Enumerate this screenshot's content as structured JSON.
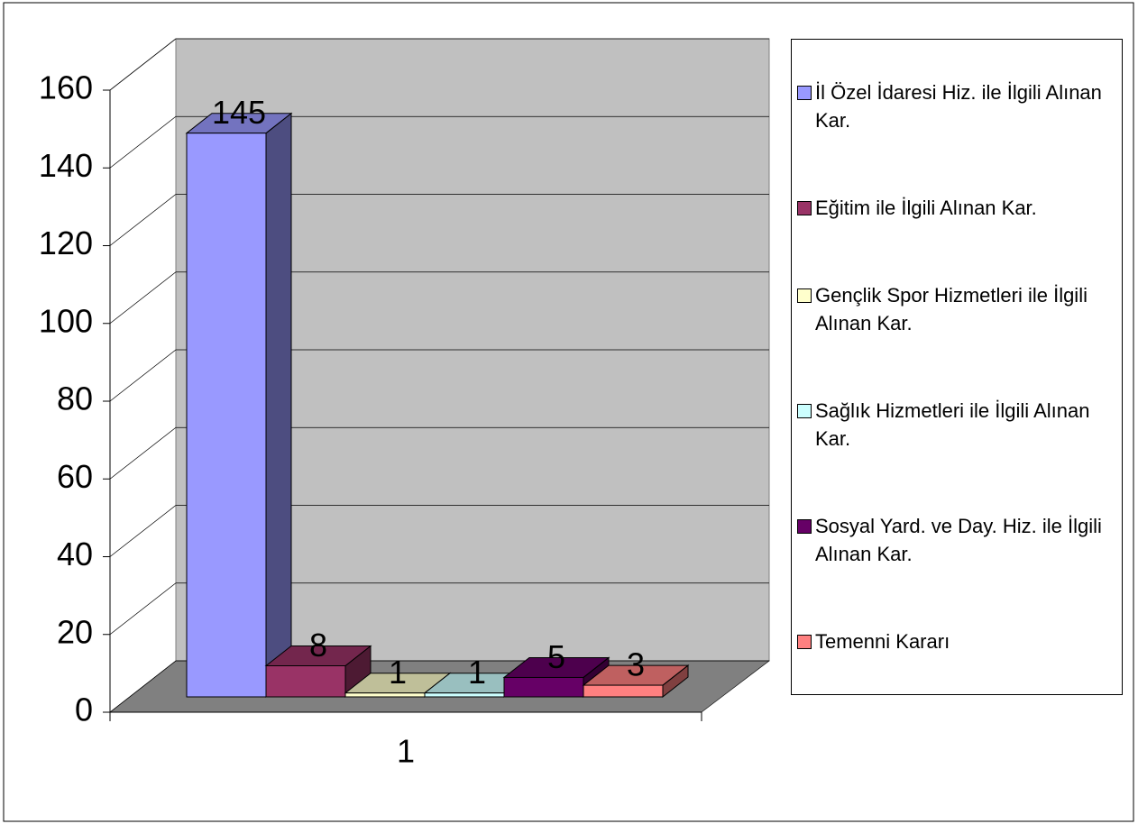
{
  "chart_data": {
    "type": "bar3d",
    "categories": [
      "1"
    ],
    "series": [
      {
        "name": "İl Özel İdaresi Hiz. ile İlgili Alınan Kar.",
        "color": "#9999ff",
        "values": [
          145
        ]
      },
      {
        "name": "Eğitim ile İlgili Alınan Kar.",
        "color": "#993366",
        "values": [
          8
        ]
      },
      {
        "name": "Gençlik Spor Hizmetleri ile İlgili Alınan Kar.",
        "color": "#ffffcc",
        "values": [
          1
        ]
      },
      {
        "name": "Sağlık Hizmetleri ile İlgili Alınan Kar.",
        "color": "#ccffff",
        "values": [
          1
        ]
      },
      {
        "name": "Sosyal Yard. ve Day. Hiz. ile İlgili Alınan Kar.",
        "color": "#660066",
        "values": [
          5
        ]
      },
      {
        "name": "Temenni Kararı",
        "color": "#ff8080",
        "values": [
          3
        ]
      }
    ],
    "ylim": [
      0,
      160
    ],
    "yticks": [
      0,
      20,
      40,
      60,
      80,
      100,
      120,
      140,
      160
    ],
    "grid": true,
    "legend": "right"
  }
}
